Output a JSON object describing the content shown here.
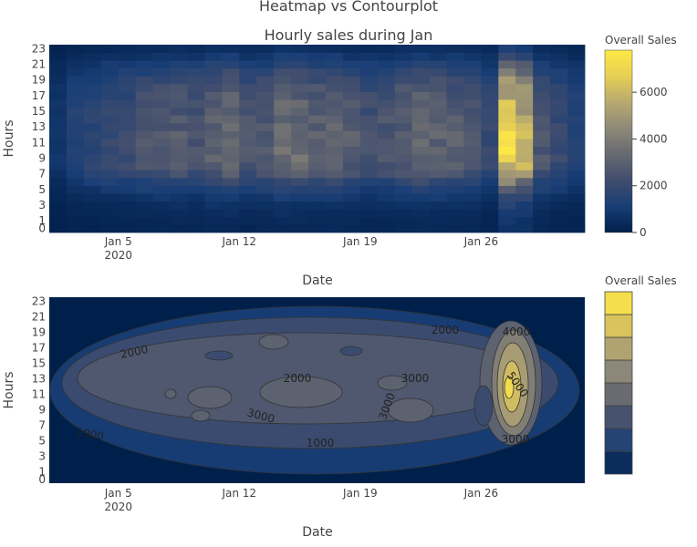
{
  "figure_title": "Heatmap vs Contourplot",
  "colors": {
    "colorscale": [
      "#00204c",
      "#193e76",
      "#404d6e",
      "#666970",
      "#8e8978",
      "#b8a96f",
      "#e6cf55",
      "#ffe945"
    ],
    "background": "#ffffff",
    "contour_line": "#333333"
  },
  "chart_data": [
    {
      "type": "heatmap",
      "title": "Hourly sales during Jan",
      "xlabel": "Date",
      "ylabel": "Hours",
      "x_range": [
        "2019-12-31",
        "2020-01-31"
      ],
      "x_ticks": [
        "Jan 5",
        "Jan 12",
        "Jan 19",
        "Jan 26"
      ],
      "x_tick_sublabel": "2020",
      "y_ticks": [
        "0",
        "1",
        "3",
        "5",
        "7",
        "9",
        "11",
        "13",
        "15",
        "17",
        "19",
        "21",
        "23"
      ],
      "hours": [
        0,
        1,
        2,
        3,
        4,
        5,
        6,
        7,
        8,
        9,
        10,
        11,
        12,
        13,
        14,
        15,
        16,
        17,
        18,
        19,
        20,
        21,
        22,
        23
      ],
      "dates": [
        "Jan 1",
        "Jan 2",
        "Jan 3",
        "Jan 4",
        "Jan 5",
        "Jan 6",
        "Jan 7",
        "Jan 8",
        "Jan 9",
        "Jan 10",
        "Jan 11",
        "Jan 12",
        "Jan 13",
        "Jan 14",
        "Jan 15",
        "Jan 16",
        "Jan 17",
        "Jan 18",
        "Jan 19",
        "Jan 20",
        "Jan 21",
        "Jan 22",
        "Jan 23",
        "Jan 24",
        "Jan 25",
        "Jan 26",
        "Jan 27",
        "Jan 28",
        "Jan 29",
        "Jan 30",
        "Jan 31"
      ],
      "profile_by_hour": [
        0.1,
        0.12,
        0.15,
        0.2,
        0.3,
        0.45,
        0.6,
        0.8,
        0.95,
        1.0,
        1.0,
        1.0,
        1.0,
        0.95,
        0.95,
        0.92,
        0.9,
        0.85,
        0.8,
        0.7,
        0.6,
        0.45,
        0.3,
        0.18
      ],
      "peak_by_date": [
        800,
        1500,
        1700,
        2000,
        2100,
        2500,
        2700,
        2800,
        2600,
        3200,
        3400,
        2600,
        2800,
        3500,
        3400,
        3200,
        3300,
        2900,
        2400,
        2600,
        3000,
        3400,
        3100,
        2900,
        2600,
        2000,
        6800,
        5800,
        2600,
        2000,
        1500
      ],
      "colorbar": {
        "title": "Overall Sales",
        "ticks": [
          "0",
          "2000",
          "4000",
          "6000"
        ],
        "range": [
          0,
          7800
        ]
      }
    },
    {
      "type": "contour",
      "xlabel": "Date",
      "ylabel": "Hours",
      "x_ticks": [
        "Jan 5",
        "Jan 12",
        "Jan 19",
        "Jan 26"
      ],
      "x_tick_sublabel": "2020",
      "y_ticks": [
        "0",
        "1",
        "3",
        "5",
        "7",
        "9",
        "11",
        "13",
        "15",
        "17",
        "19",
        "21",
        "23"
      ],
      "contour_levels": [
        1000,
        2000,
        3000,
        4000,
        5000,
        6000,
        7000
      ],
      "level_labels": [
        "1000",
        "2000",
        "3000",
        "4000",
        "5000",
        "1000",
        "2000",
        "3000",
        "2000",
        "3000",
        "3000"
      ],
      "colorbar": {
        "title": "Overall Sales"
      }
    }
  ]
}
